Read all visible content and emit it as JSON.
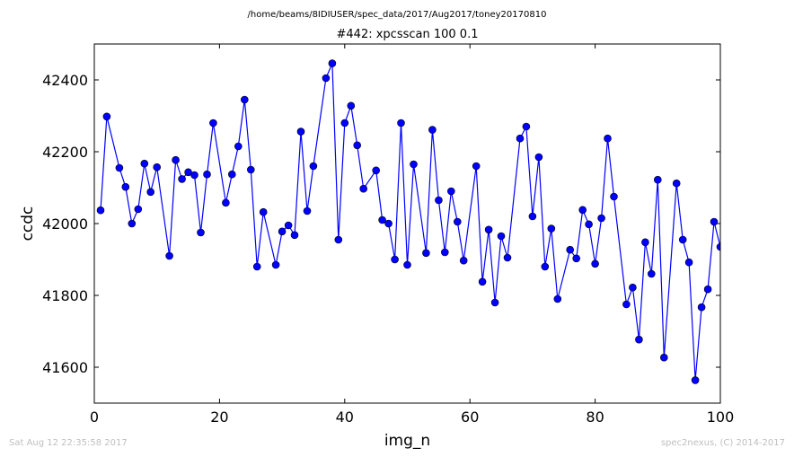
{
  "suptitle": "/home/beams/8IDIUSER/spec_data/2017/Aug2017/toney20170810",
  "footer": {
    "timestamp": "Sat Aug 12 22:35:58 2017",
    "credit": "spec2nexus, (C) 2014-2017"
  },
  "chart_data": {
    "type": "line",
    "title": "#442: xpcsscan 100 0.1",
    "xlabel": "img_n",
    "ylabel": "ccdc",
    "xlim": [
      0,
      100
    ],
    "ylim": [
      41500,
      42500
    ],
    "xticks": [
      0,
      20,
      40,
      60,
      80,
      100
    ],
    "yticks": [
      41600,
      41800,
      42000,
      42200,
      42400
    ],
    "grid": false,
    "color": "#0000ff",
    "marker": "circle",
    "series": [
      {
        "x": [
          1,
          2,
          3,
          4,
          5,
          6,
          7,
          8,
          9,
          10,
          11,
          12,
          13,
          14,
          15,
          16,
          17,
          18,
          19,
          20,
          21,
          22,
          23,
          24,
          25,
          26,
          27,
          28,
          29,
          30,
          31,
          32,
          33,
          34,
          35,
          36,
          37,
          38,
          39,
          40,
          41,
          42,
          43,
          44,
          45,
          46,
          47,
          48,
          49,
          50,
          51,
          52,
          53,
          54,
          55,
          56,
          57,
          58,
          59,
          60,
          61,
          62,
          63,
          64,
          65,
          66,
          67,
          68,
          69,
          70,
          71,
          72,
          73,
          74,
          75,
          76,
          77,
          78,
          79,
          80,
          81,
          82,
          83,
          84,
          85,
          86,
          87,
          88,
          89,
          90,
          91,
          92,
          93,
          94,
          95,
          96,
          97,
          98,
          99,
          100
        ],
        "y": [
          42037,
          42298,
          null,
          42155,
          42102,
          42000,
          42040,
          42167,
          42088,
          42157,
          null,
          41910,
          42177,
          42124,
          42143,
          42135,
          41975,
          42137,
          42280,
          null,
          42058,
          42137,
          42215,
          42345,
          42150,
          41880,
          42032,
          null,
          41885,
          41978,
          41995,
          41968,
          42256,
          42035,
          42160,
          null,
          42405,
          42446,
          41955,
          42280,
          42328,
          42218,
          42097,
          null,
          42148,
          42010,
          42000,
          41900,
          42280,
          41885,
          42165,
          null,
          41918,
          42261,
          42065,
          41920,
          42090,
          42005,
          41897,
          null,
          42160,
          41838,
          41983,
          41780,
          41965,
          41905,
          null,
          42237,
          42270,
          42020,
          42185,
          41880,
          41986,
          41790,
          null,
          41927,
          41903,
          42038,
          41998,
          41888,
          42015,
          42237,
          42075,
          null,
          41775,
          41822,
          41677,
          41948,
          41860,
          42122,
          41627,
          null,
          42112,
          41955,
          41892,
          41564,
          41767,
          41817,
          42005,
          41935
        ]
      }
    ]
  }
}
